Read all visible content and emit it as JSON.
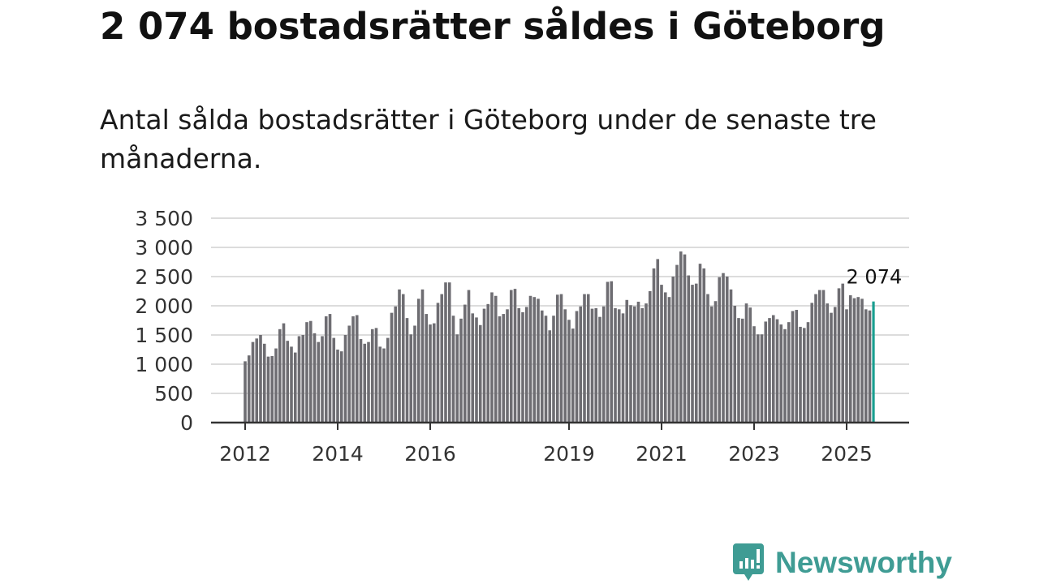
{
  "header": {
    "title": "2 074 bostadsrätter såldes i Göteborg",
    "subtitle": "Antal sålda bostadsrätter i Göteborg under de senaste tre månaderna."
  },
  "chart_data": {
    "type": "bar",
    "title": "2 074 bostadsrätter såldes i Göteborg",
    "subtitle": "Antal sålda bostadsrätter i Göteborg under de senaste tre månaderna.",
    "xlabel": "",
    "ylabel": "",
    "start": "2012-01",
    "frequency": "monthly",
    "ylim": [
      0,
      3500
    ],
    "yticks": [
      0,
      500,
      1000,
      1500,
      2000,
      2500,
      3000,
      3500
    ],
    "ytick_labels": [
      "0",
      "500",
      "1 000",
      "1 500",
      "2 000",
      "2 500",
      "3 000",
      "3 500"
    ],
    "xtick_labels": [
      "2012",
      "2014",
      "2016",
      "2019",
      "2021",
      "2023",
      "2025"
    ],
    "grid": true,
    "highlight_label": "2 074",
    "colors": {
      "bar": "#6e6d72",
      "highlight": "#1a9e90",
      "grid": "#dcdcdc",
      "axis": "#333333"
    },
    "values": [
      1050,
      1150,
      1380,
      1440,
      1500,
      1350,
      1130,
      1140,
      1270,
      1600,
      1700,
      1400,
      1300,
      1200,
      1480,
      1500,
      1720,
      1740,
      1530,
      1380,
      1480,
      1820,
      1860,
      1450,
      1250,
      1220,
      1500,
      1660,
      1820,
      1840,
      1430,
      1350,
      1380,
      1600,
      1620,
      1300,
      1270,
      1450,
      1880,
      1990,
      2280,
      2200,
      1790,
      1510,
      1660,
      2120,
      2280,
      1860,
      1680,
      1700,
      2050,
      2200,
      2400,
      2400,
      1830,
      1510,
      1780,
      2020,
      2270,
      1870,
      1800,
      1670,
      1950,
      2030,
      2230,
      2170,
      1820,
      1860,
      1940,
      2270,
      2290,
      1960,
      1890,
      1980,
      2170,
      2150,
      2120,
      1920,
      1830,
      1580,
      1830,
      2190,
      2200,
      1940,
      1760,
      1610,
      1910,
      1990,
      2200,
      2200,
      1950,
      1960,
      1810,
      1990,
      2410,
      2420,
      1960,
      1940,
      1870,
      2100,
      2010,
      1990,
      2070,
      1960,
      2040,
      2250,
      2640,
      2800,
      2360,
      2230,
      2150,
      2500,
      2700,
      2930,
      2880,
      2520,
      2360,
      2380,
      2720,
      2640,
      2200,
      1990,
      2080,
      2490,
      2560,
      2500,
      2280,
      2000,
      1790,
      1780,
      2040,
      1970,
      1650,
      1510,
      1510,
      1730,
      1790,
      1840,
      1770,
      1680,
      1600,
      1720,
      1910,
      1930,
      1640,
      1620,
      1720,
      2050,
      2200,
      2270,
      2270,
      2040,
      1880,
      1980,
      2300,
      2380,
      1940,
      2180,
      2130,
      2150,
      2120,
      1940,
      1920,
      2074
    ]
  },
  "footer": {
    "brand": "Newsworthy",
    "logo_icon": "chart-speech-bubble-icon",
    "brand_color": "#3f9c94"
  }
}
